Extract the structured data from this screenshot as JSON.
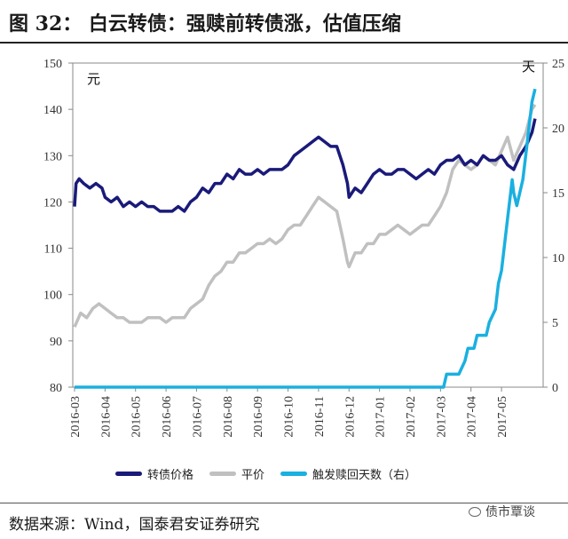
{
  "title": "图  32：  白云转债：强赎前转债涨，估值压缩",
  "source": "数据来源：Wind，国泰君安证券研究",
  "watermark": "债市覃谈",
  "chart_data": {
    "type": "line",
    "x_labels": [
      "2016-03",
      "2016-04",
      "2016-05",
      "2016-06",
      "2016-07",
      "2016-08",
      "2016-09",
      "2016-10",
      "2016-11",
      "2016-12",
      "2017-01",
      "2017-02",
      "2017-03",
      "2017-04",
      "2017-05"
    ],
    "left_axis": {
      "unit_label": "元",
      "min": 80,
      "max": 150,
      "ticks": [
        80,
        90,
        100,
        110,
        120,
        130,
        140,
        150
      ]
    },
    "right_axis": {
      "unit_label": "天",
      "min": 0,
      "max": 25,
      "ticks": [
        0,
        5,
        10,
        15,
        20,
        25
      ]
    },
    "series": [
      {
        "name": "转债价格",
        "axis": "left",
        "color": "#1a1a7a",
        "points": [
          [
            0,
            119
          ],
          [
            0.05,
            124
          ],
          [
            0.15,
            125
          ],
          [
            0.3,
            124
          ],
          [
            0.5,
            123
          ],
          [
            0.7,
            124
          ],
          [
            0.9,
            123
          ],
          [
            1.0,
            121
          ],
          [
            1.2,
            120
          ],
          [
            1.4,
            121
          ],
          [
            1.6,
            119
          ],
          [
            1.8,
            120
          ],
          [
            2.0,
            119
          ],
          [
            2.2,
            120
          ],
          [
            2.4,
            119
          ],
          [
            2.6,
            119
          ],
          [
            2.8,
            118
          ],
          [
            3.0,
            118
          ],
          [
            3.2,
            118
          ],
          [
            3.4,
            119
          ],
          [
            3.6,
            118
          ],
          [
            3.8,
            120
          ],
          [
            4.0,
            121
          ],
          [
            4.2,
            123
          ],
          [
            4.4,
            122
          ],
          [
            4.6,
            124
          ],
          [
            4.8,
            124
          ],
          [
            5.0,
            126
          ],
          [
            5.2,
            125
          ],
          [
            5.4,
            127
          ],
          [
            5.6,
            126
          ],
          [
            5.8,
            126
          ],
          [
            6.0,
            127
          ],
          [
            6.2,
            126
          ],
          [
            6.4,
            127
          ],
          [
            6.6,
            127
          ],
          [
            6.8,
            127
          ],
          [
            7.0,
            128
          ],
          [
            7.2,
            130
          ],
          [
            7.4,
            131
          ],
          [
            7.6,
            132
          ],
          [
            7.8,
            133
          ],
          [
            8.0,
            134
          ],
          [
            8.2,
            133
          ],
          [
            8.4,
            132
          ],
          [
            8.6,
            132
          ],
          [
            8.8,
            128
          ],
          [
            8.95,
            124
          ],
          [
            9.0,
            121
          ],
          [
            9.2,
            123
          ],
          [
            9.4,
            122
          ],
          [
            9.6,
            124
          ],
          [
            9.8,
            126
          ],
          [
            10.0,
            127
          ],
          [
            10.2,
            126
          ],
          [
            10.4,
            126
          ],
          [
            10.6,
            127
          ],
          [
            10.8,
            127
          ],
          [
            11.0,
            126
          ],
          [
            11.2,
            125
          ],
          [
            11.4,
            126
          ],
          [
            11.6,
            127
          ],
          [
            11.8,
            126
          ],
          [
            12.0,
            128
          ],
          [
            12.2,
            129
          ],
          [
            12.4,
            129
          ],
          [
            12.6,
            130
          ],
          [
            12.8,
            128
          ],
          [
            13.0,
            129
          ],
          [
            13.2,
            128
          ],
          [
            13.4,
            130
          ],
          [
            13.6,
            129
          ],
          [
            13.8,
            129
          ],
          [
            14.0,
            130
          ],
          [
            14.2,
            128
          ],
          [
            14.4,
            127
          ],
          [
            14.6,
            130
          ],
          [
            14.8,
            132
          ],
          [
            15.0,
            135
          ],
          [
            15.1,
            138
          ]
        ]
      },
      {
        "name": "平价",
        "axis": "left",
        "color": "#c0c0c0",
        "points": [
          [
            0,
            93
          ],
          [
            0.2,
            96
          ],
          [
            0.4,
            95
          ],
          [
            0.6,
            97
          ],
          [
            0.8,
            98
          ],
          [
            1.0,
            97
          ],
          [
            1.2,
            96
          ],
          [
            1.4,
            95
          ],
          [
            1.6,
            95
          ],
          [
            1.8,
            94
          ],
          [
            2.0,
            94
          ],
          [
            2.2,
            94
          ],
          [
            2.4,
            95
          ],
          [
            2.6,
            95
          ],
          [
            2.8,
            95
          ],
          [
            3.0,
            94
          ],
          [
            3.2,
            95
          ],
          [
            3.4,
            95
          ],
          [
            3.6,
            95
          ],
          [
            3.8,
            97
          ],
          [
            4.0,
            98
          ],
          [
            4.2,
            99
          ],
          [
            4.4,
            102
          ],
          [
            4.6,
            104
          ],
          [
            4.8,
            105
          ],
          [
            5.0,
            107
          ],
          [
            5.2,
            107
          ],
          [
            5.4,
            109
          ],
          [
            5.6,
            109
          ],
          [
            5.8,
            110
          ],
          [
            6.0,
            111
          ],
          [
            6.2,
            111
          ],
          [
            6.4,
            112
          ],
          [
            6.6,
            111
          ],
          [
            6.8,
            112
          ],
          [
            7.0,
            114
          ],
          [
            7.2,
            115
          ],
          [
            7.4,
            115
          ],
          [
            7.6,
            117
          ],
          [
            7.8,
            119
          ],
          [
            8.0,
            121
          ],
          [
            8.2,
            120
          ],
          [
            8.4,
            119
          ],
          [
            8.6,
            118
          ],
          [
            8.8,
            112
          ],
          [
            8.95,
            107
          ],
          [
            9.0,
            106
          ],
          [
            9.2,
            109
          ],
          [
            9.4,
            109
          ],
          [
            9.6,
            111
          ],
          [
            9.8,
            111
          ],
          [
            10.0,
            113
          ],
          [
            10.2,
            113
          ],
          [
            10.4,
            114
          ],
          [
            10.6,
            115
          ],
          [
            10.8,
            114
          ],
          [
            11.0,
            113
          ],
          [
            11.2,
            114
          ],
          [
            11.4,
            115
          ],
          [
            11.6,
            115
          ],
          [
            11.8,
            117
          ],
          [
            12.0,
            119
          ],
          [
            12.2,
            122
          ],
          [
            12.4,
            127
          ],
          [
            12.6,
            129
          ],
          [
            12.8,
            128
          ],
          [
            13.0,
            127
          ],
          [
            13.2,
            128
          ],
          [
            13.4,
            130
          ],
          [
            13.6,
            129
          ],
          [
            13.8,
            128
          ],
          [
            14.0,
            131
          ],
          [
            14.2,
            134
          ],
          [
            14.4,
            129
          ],
          [
            14.6,
            132
          ],
          [
            14.8,
            135
          ],
          [
            15.0,
            140
          ],
          [
            15.1,
            141
          ]
        ]
      },
      {
        "name": "触发赎回天数（右）",
        "axis": "right",
        "color": "#1ab0e0",
        "points": [
          [
            0,
            0
          ],
          [
            12.1,
            0
          ],
          [
            12.2,
            1
          ],
          [
            12.4,
            1
          ],
          [
            12.6,
            1
          ],
          [
            12.8,
            2
          ],
          [
            12.9,
            3
          ],
          [
            13.1,
            3
          ],
          [
            13.2,
            4
          ],
          [
            13.4,
            4
          ],
          [
            13.5,
            4
          ],
          [
            13.6,
            5
          ],
          [
            13.8,
            6
          ],
          [
            13.9,
            8
          ],
          [
            14.0,
            9
          ],
          [
            14.1,
            11
          ],
          [
            14.2,
            13
          ],
          [
            14.3,
            15
          ],
          [
            14.35,
            16
          ],
          [
            14.4,
            15
          ],
          [
            14.5,
            14
          ],
          [
            14.6,
            15
          ],
          [
            14.7,
            16
          ],
          [
            14.8,
            18
          ],
          [
            14.9,
            20
          ],
          [
            15.0,
            22
          ],
          [
            15.1,
            23
          ]
        ]
      }
    ]
  }
}
